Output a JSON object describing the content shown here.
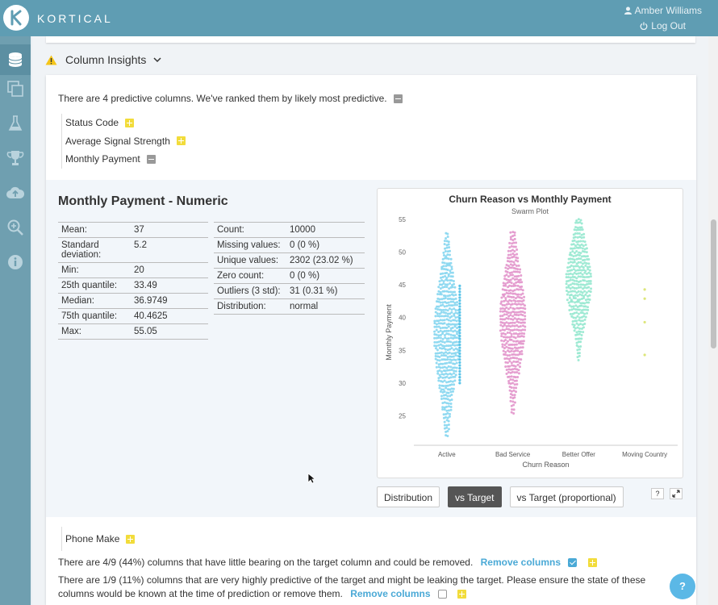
{
  "app": {
    "brand": "KORTICAL",
    "user_name": "Amber Williams",
    "logout_label": "Log Out"
  },
  "sidebar": {
    "items": [
      {
        "name": "data-icon"
      },
      {
        "name": "copy-icon"
      },
      {
        "name": "flask-icon"
      },
      {
        "name": "trophy-icon"
      },
      {
        "name": "cloud-upload-icon"
      },
      {
        "name": "search-plus-icon"
      },
      {
        "name": "info-icon"
      }
    ]
  },
  "section": {
    "title": "Column Insights"
  },
  "insights": {
    "intro": "There are 4 predictive columns. We've ranked them by likely most predictive.",
    "columns": [
      {
        "label": "Status Code",
        "state": "plus"
      },
      {
        "label": "Average Signal Strength",
        "state": "plus"
      },
      {
        "label": "Monthly Payment",
        "state": "minus"
      }
    ]
  },
  "detail": {
    "title": "Monthly Payment - Numeric",
    "stats_left": [
      {
        "k": "Mean:",
        "v": "37"
      },
      {
        "k": "Standard deviation:",
        "v": "5.2"
      },
      {
        "k": "Min:",
        "v": "20"
      },
      {
        "k": "25th quantile:",
        "v": "33.49"
      },
      {
        "k": "Median:",
        "v": "36.9749"
      },
      {
        "k": "75th quantile:",
        "v": "40.4625"
      },
      {
        "k": "Max:",
        "v": "55.05"
      }
    ],
    "stats_right": [
      {
        "k": "Count:",
        "v": "10000"
      },
      {
        "k": "Missing values:",
        "v": "0 (0 %)"
      },
      {
        "k": "Unique values:",
        "v": "2302 (23.02 %)"
      },
      {
        "k": "Zero count:",
        "v": "0 (0 %)"
      },
      {
        "k": "Outliers (3 std):",
        "v": "31 (0.31 %)"
      },
      {
        "k": "Distribution:",
        "v": "normal"
      }
    ],
    "buttons": {
      "distribution": "Distribution",
      "vs_target": "vs Target",
      "vs_target_prop": "vs Target (proportional)"
    },
    "help_label": "?"
  },
  "chart_data": {
    "type": "scatter",
    "subtype": "swarm",
    "title": "Churn Reason vs Monthly Payment",
    "subtitle": "Swarm Plot",
    "xlabel": "Churn Reason",
    "ylabel": "Monthly Payment",
    "categories": [
      "Active",
      "Bad Service",
      "Better Offer",
      "Moving Country"
    ],
    "ylim": [
      20.5,
      55
    ],
    "yticks": [
      25,
      30,
      35,
      40,
      45,
      50,
      55
    ],
    "series": [
      {
        "category": "Active",
        "color": "#7fd3ee",
        "min": 22,
        "max": 53,
        "center": 37.5
      },
      {
        "category": "Bad Service",
        "color": "#e08ec8",
        "min": 25.5,
        "max": 53.5,
        "center": 40
      },
      {
        "category": "Better Offer",
        "color": "#8fe6cc",
        "min": 33.5,
        "max": 55,
        "center": 45.5
      },
      {
        "category": "Moving Country",
        "color": "#dde67a",
        "values": [
          34.3,
          39.3,
          42.9,
          44.3
        ]
      }
    ]
  },
  "phone": {
    "label": "Phone Make"
  },
  "notes": {
    "removable": "There are 4/9 (44%) columns that have little bearing on the target column and could be removed.",
    "removable_link": "Remove columns",
    "leaking": "There are 1/9 (11%) columns that are very highly predictive of the target and might be leaking the target. Please ensure the state of these columns would be known at the time of prediction or remove them.",
    "leaking_link": "Remove columns"
  },
  "help_button": "?"
}
